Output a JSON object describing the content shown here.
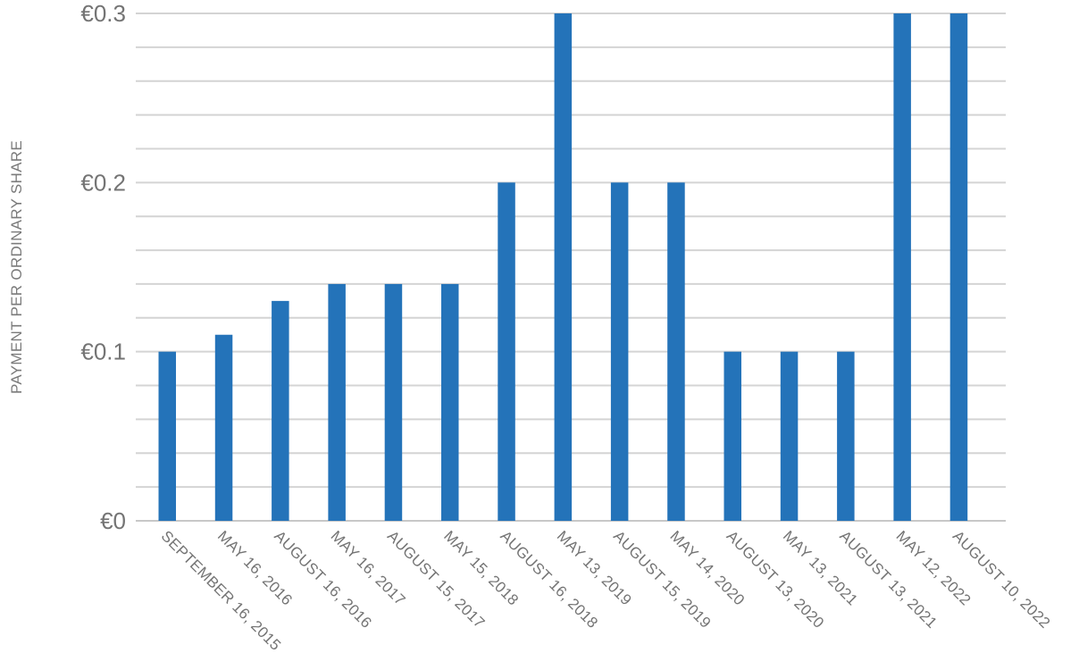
{
  "chart_data": {
    "type": "bar",
    "ylabel": "PAYMENT PER ORDINARY SHARE",
    "xlabel": "",
    "title": "",
    "categories": [
      "SEPTEMBER 16, 2015",
      "MAY 16, 2016",
      "AUGUST 16, 2016",
      "MAY 16, 2017",
      "AUGUST 15, 2017",
      "MAY 15, 2018",
      "AUGUST 16, 2018",
      "MAY 13, 2019",
      "AUGUST 15, 2019",
      "MAY 14, 2020",
      "AUGUST 13, 2020",
      "MAY 13, 2021",
      "AUGUST 13, 2021",
      "MAY 12, 2022",
      "AUGUST 10, 2022"
    ],
    "values": [
      0.1,
      0.11,
      0.13,
      0.14,
      0.14,
      0.14,
      0.2,
      0.3,
      0.2,
      0.2,
      0.1,
      0.1,
      0.1,
      0.3,
      0.3
    ],
    "ylim": [
      0,
      0.3
    ],
    "yticks": [
      0,
      0.1,
      0.2,
      0.3
    ],
    "ytick_labels": [
      "€0",
      "€0.1",
      "€0.2",
      "€0.3"
    ],
    "minor_gridline_step": 0.02,
    "grid": true,
    "legend": "none",
    "bar_color": "#2473b9",
    "grid_color": "#d4d4d4",
    "text_color": "#747474"
  }
}
